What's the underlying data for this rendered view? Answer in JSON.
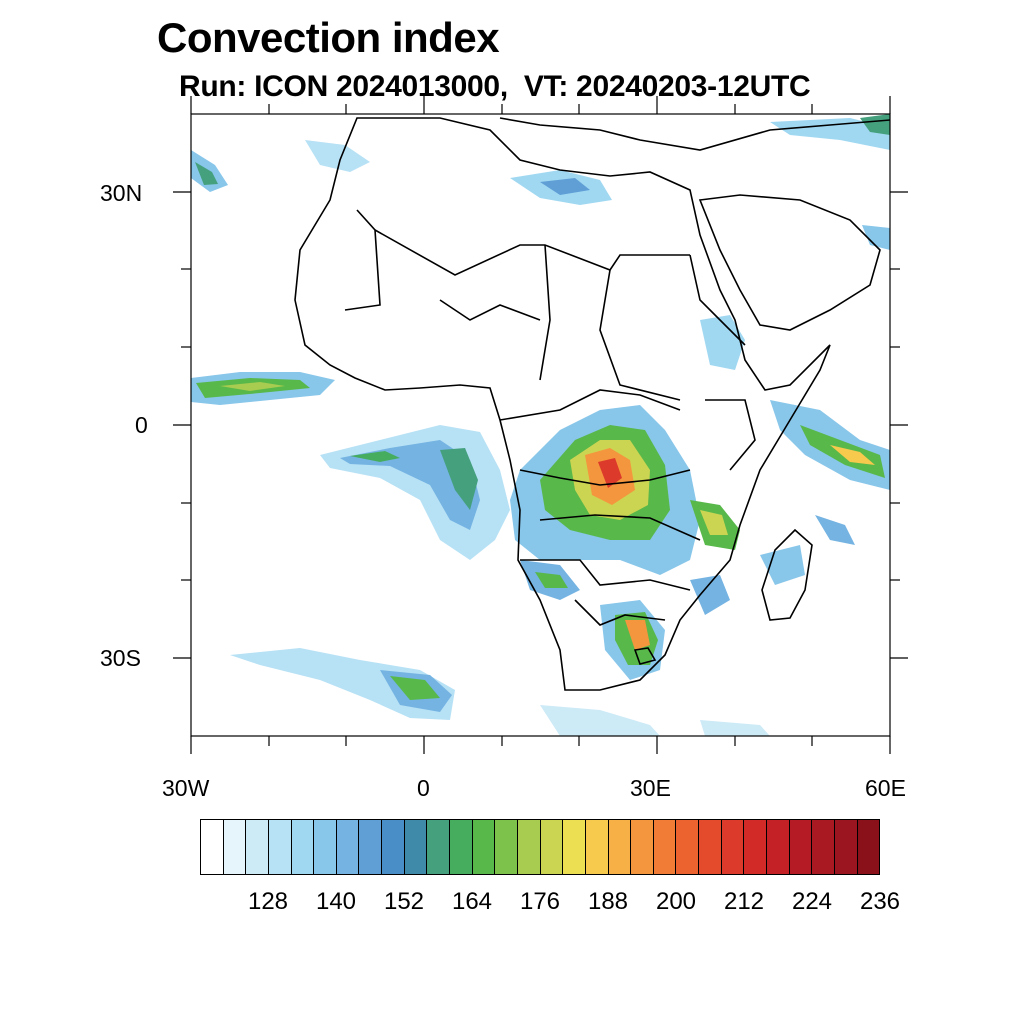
{
  "title": "Convection index",
  "subtitle": "Run: ICON 2024013000,  VT: 20240203-12UTC",
  "axes": {
    "lat_labels": [
      "30N",
      "0",
      "30S"
    ],
    "lon_labels": [
      "30W",
      "0",
      "30E",
      "60E"
    ]
  },
  "map_extent": {
    "lon": [
      -30,
      60
    ],
    "lat": [
      -40,
      40
    ]
  },
  "colorbar": {
    "levels": [
      116,
      120,
      124,
      128,
      132,
      136,
      140,
      144,
      148,
      152,
      156,
      160,
      164,
      168,
      172,
      176,
      180,
      184,
      188,
      192,
      196,
      200,
      204,
      208,
      212,
      216,
      220,
      224,
      228,
      232,
      236
    ],
    "tick_labels": [
      "128",
      "140",
      "152",
      "164",
      "176",
      "188",
      "200",
      "212",
      "224",
      "236"
    ],
    "colors": [
      "#ffffff",
      "#e6f4fb",
      "#cdeaf7",
      "#b7e1f5",
      "#a0d8f2",
      "#88c6ea",
      "#74b3e2",
      "#5f9fd6",
      "#4a8ec8",
      "#3f8aa8",
      "#45a07e",
      "#47ad5e",
      "#58b84a",
      "#7dc24a",
      "#a7cc4f",
      "#cbd552",
      "#ece052",
      "#f7c94c",
      "#f6b045",
      "#f4963d",
      "#f07c36",
      "#ec6330",
      "#e44b2c",
      "#dc3a2a",
      "#d22b27",
      "#c42126",
      "#b51b24",
      "#a81922",
      "#9a1520",
      "#8a1119"
    ]
  }
}
